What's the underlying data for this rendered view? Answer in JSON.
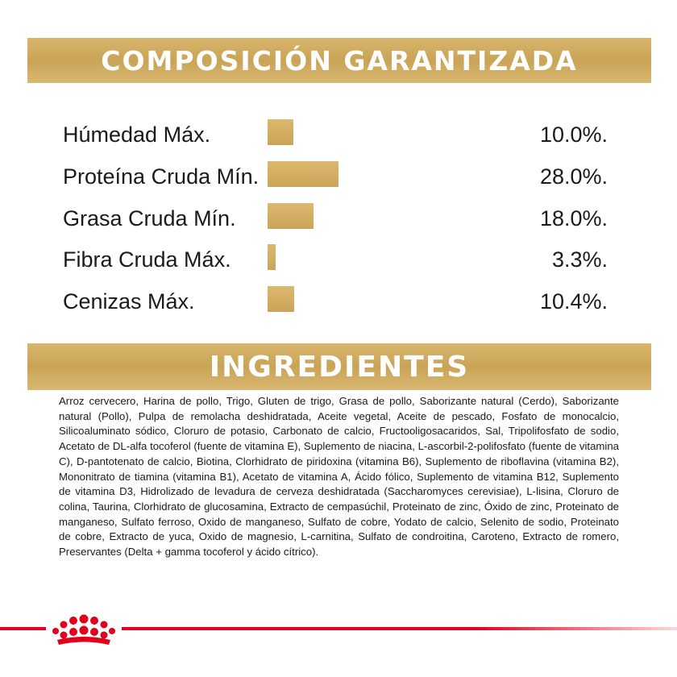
{
  "composition": {
    "title": "COMPOSICIÓN GARANTIZADA",
    "accent_color": "#cfab5e",
    "rows": [
      {
        "label": "Húmedad Máx.",
        "value": "10.0%.",
        "percent": 10.0
      },
      {
        "label": "Proteína Cruda Mín.",
        "value": "28.0%.",
        "percent": 28.0
      },
      {
        "label": "Grasa Cruda Mín.",
        "value": "18.0%.",
        "percent": 18.0
      },
      {
        "label": "Fibra Cruda Máx.",
        "value": "3.3%.",
        "percent": 3.3
      },
      {
        "label": "Cenizas Máx.",
        "value": "10.4%.",
        "percent": 10.4
      }
    ]
  },
  "ingredients": {
    "title": "INGREDIENTES",
    "text": "Arroz cervecero, Harina de pollo, Trigo, Gluten de trigo, Grasa de pollo, Saborizante natural (Cerdo), Saborizante natural (Pollo), Pulpa de remolacha deshidratada, Aceite vegetal, Aceite de pescado, Fosfato de monocalcio, Silicoaluminato sódico, Cloruro de potasio, Carbonato de calcio, Fructooligosacaridos, Sal, Tripolifosfato de sodio, Acetato de DL-alfa tocoferol (fuente de vitamina E), Suplemento de niacina, L-ascorbil-2-polifosfato (fuente de vitamina C), D-pantotenato de calcio, Biotina, Clorhidrato de piridoxina (vitamina B6), Suplemento de riboflavina (vitamina B2), Mononitrato de tiamina (vitamina B1), Acetato de vitamina A, Ácido fólico, Suplemento de vitamina B12, Suplemento de vitamina D3, Hidrolizado de levadura de cerveza deshidratada (Saccharomyces cerevisiae), L-lisina, Cloruro de colina, Taurina, Clorhidrato de glucosamina, Extracto de cempasúchil, Proteinato de zinc, Óxido de zinc, Proteinato de manganeso, Sulfato ferroso, Oxido de manganeso, Sulfato de cobre, Yodato de calcio, Selenito de sodio, Proteinato de cobre, Extracto de yuca, Oxido de magnesio, L-carnitina, Sulfato de condroitina, Caroteno, Extracto de romero, Preservantes (Delta + gamma tocoferol y ácido cítrico)."
  },
  "footer": {
    "logo_icon": "royal-canin-crown-icon",
    "line_color": "#e2001a"
  }
}
